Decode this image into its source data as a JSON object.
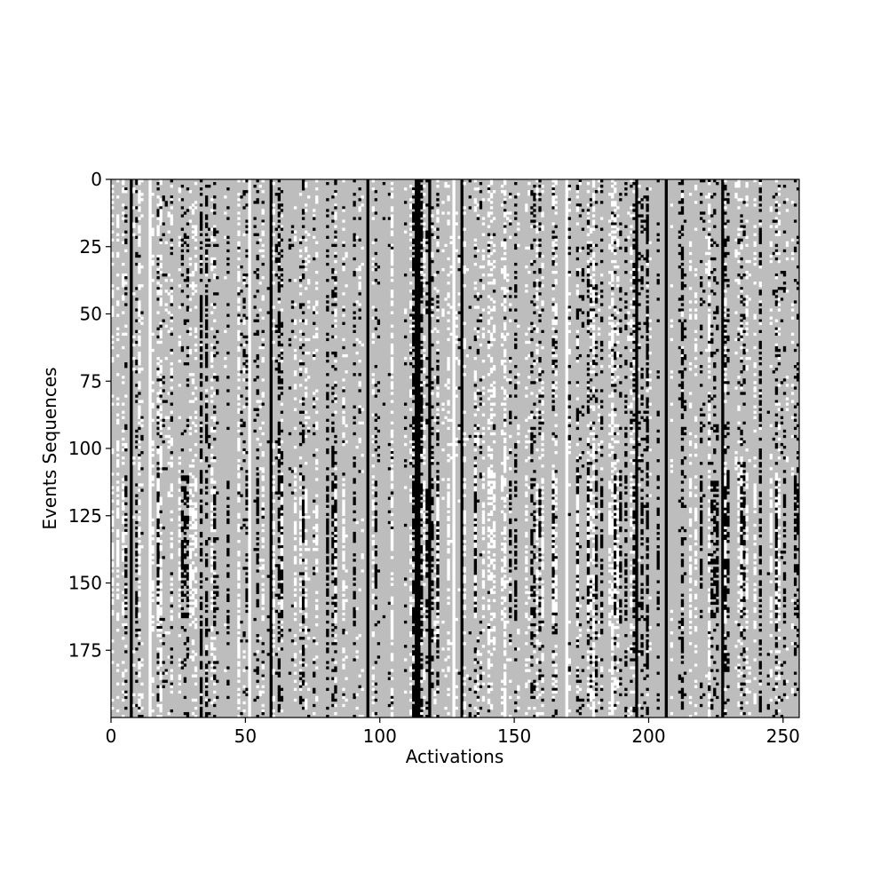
{
  "chart_data": {
    "type": "heatmap",
    "title": "",
    "xlabel": "Activations",
    "ylabel": "Events Sequences",
    "x_range": [
      0,
      256
    ],
    "y_range": [
      0,
      200
    ],
    "y_axis_inverted": true,
    "x_ticks": [
      0,
      50,
      100,
      150,
      200,
      250
    ],
    "y_ticks": [
      0,
      25,
      50,
      75,
      100,
      125,
      150,
      175
    ],
    "value_levels": [
      -1,
      0,
      1
    ],
    "colormap": {
      "-1": "#ffffff",
      "0": "#bdbdbd",
      "1": "#000000"
    },
    "colormap_name": "gray_r",
    "segments_rows": [
      [
        0,
        110
      ],
      [
        110,
        163
      ],
      [
        163,
        200
      ]
    ],
    "solid_dark_columns": [
      7,
      59,
      95,
      113,
      114,
      118,
      130,
      195,
      206,
      227
    ],
    "solid_light_columns": [
      14,
      51,
      127,
      169
    ],
    "dense_dark_columns": [
      33,
      35,
      62,
      112,
      115,
      199,
      212,
      241
    ],
    "dense_light_columns": [
      10,
      18,
      47,
      104,
      146,
      179,
      186,
      222
    ],
    "grid": false,
    "legend": "none"
  }
}
